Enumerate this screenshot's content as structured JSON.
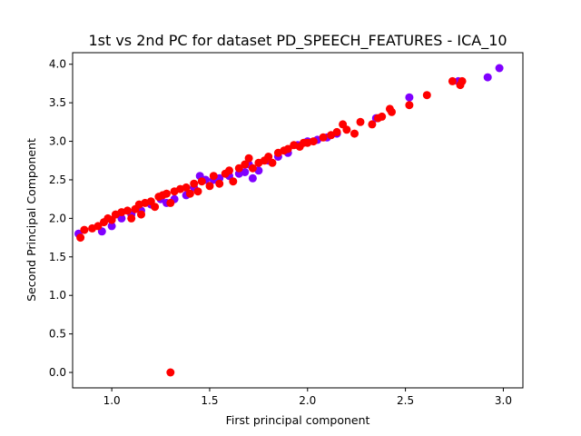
{
  "chart_data": {
    "type": "scatter",
    "title": "1st vs 2nd PC for dataset PD_SPEECH_FEATURES - ICA_10",
    "xlabel": "First principal component",
    "ylabel": "Second Principal Component",
    "xlim": [
      0.8,
      3.1
    ],
    "ylim": [
      -0.2,
      4.15
    ],
    "xticks": [
      "1.0",
      "1.5",
      "2.0",
      "2.5",
      "3.0"
    ],
    "yticks": [
      "0.0",
      "0.5",
      "1.0",
      "1.5",
      "2.0",
      "2.5",
      "3.0",
      "3.5",
      "4.0"
    ],
    "grid": false,
    "colors": {
      "class_0": "#8000ff",
      "class_1": "#ff0000"
    },
    "series": [
      {
        "color_key": "class_0",
        "points": [
          [
            0.83,
            1.8
          ],
          [
            0.95,
            1.83
          ],
          [
            1.0,
            1.9
          ],
          [
            1.05,
            2.0
          ],
          [
            1.1,
            2.05
          ],
          [
            1.15,
            2.1
          ],
          [
            1.2,
            2.18
          ],
          [
            1.25,
            2.25
          ],
          [
            1.28,
            2.2
          ],
          [
            1.32,
            2.25
          ],
          [
            1.38,
            2.3
          ],
          [
            1.42,
            2.4
          ],
          [
            1.45,
            2.55
          ],
          [
            1.48,
            2.5
          ],
          [
            1.52,
            2.5
          ],
          [
            1.55,
            2.52
          ],
          [
            1.6,
            2.55
          ],
          [
            1.65,
            2.58
          ],
          [
            1.68,
            2.6
          ],
          [
            1.7,
            2.7
          ],
          [
            1.72,
            2.52
          ],
          [
            1.75,
            2.62
          ],
          [
            1.8,
            2.75
          ],
          [
            1.85,
            2.8
          ],
          [
            1.9,
            2.85
          ],
          [
            1.95,
            2.95
          ],
          [
            2.0,
            3.0
          ],
          [
            2.05,
            3.02
          ],
          [
            2.1,
            3.05
          ],
          [
            2.15,
            3.1
          ],
          [
            2.35,
            3.3
          ],
          [
            2.52,
            3.57
          ],
          [
            2.77,
            3.78
          ],
          [
            2.92,
            3.83
          ],
          [
            2.98,
            3.95
          ]
        ]
      },
      {
        "color_key": "class_1",
        "points": [
          [
            0.84,
            1.75
          ],
          [
            0.86,
            1.85
          ],
          [
            0.9,
            1.87
          ],
          [
            0.93,
            1.9
          ],
          [
            0.96,
            1.95
          ],
          [
            0.98,
            2.0
          ],
          [
            1.0,
            1.98
          ],
          [
            1.02,
            2.05
          ],
          [
            1.05,
            2.08
          ],
          [
            1.08,
            2.1
          ],
          [
            1.1,
            2.0
          ],
          [
            1.12,
            2.12
          ],
          [
            1.14,
            2.18
          ],
          [
            1.15,
            2.05
          ],
          [
            1.17,
            2.2
          ],
          [
            1.2,
            2.22
          ],
          [
            1.22,
            2.15
          ],
          [
            1.24,
            2.28
          ],
          [
            1.26,
            2.3
          ],
          [
            1.28,
            2.32
          ],
          [
            1.3,
            2.2
          ],
          [
            1.32,
            2.35
          ],
          [
            1.35,
            2.38
          ],
          [
            1.38,
            2.4
          ],
          [
            1.4,
            2.32
          ],
          [
            1.42,
            2.45
          ],
          [
            1.44,
            2.35
          ],
          [
            1.46,
            2.48
          ],
          [
            1.5,
            2.42
          ],
          [
            1.52,
            2.55
          ],
          [
            1.55,
            2.45
          ],
          [
            1.58,
            2.58
          ],
          [
            1.6,
            2.62
          ],
          [
            1.62,
            2.48
          ],
          [
            1.65,
            2.65
          ],
          [
            1.68,
            2.7
          ],
          [
            1.7,
            2.78
          ],
          [
            1.72,
            2.65
          ],
          [
            1.75,
            2.72
          ],
          [
            1.78,
            2.75
          ],
          [
            1.8,
            2.8
          ],
          [
            1.82,
            2.72
          ],
          [
            1.85,
            2.85
          ],
          [
            1.88,
            2.88
          ],
          [
            1.9,
            2.9
          ],
          [
            1.93,
            2.95
          ],
          [
            1.96,
            2.93
          ],
          [
            1.98,
            2.98
          ],
          [
            2.0,
            2.98
          ],
          [
            2.03,
            3.0
          ],
          [
            2.08,
            3.05
          ],
          [
            2.12,
            3.08
          ],
          [
            2.15,
            3.12
          ],
          [
            2.18,
            3.22
          ],
          [
            2.2,
            3.15
          ],
          [
            2.24,
            3.1
          ],
          [
            2.27,
            3.25
          ],
          [
            2.33,
            3.22
          ],
          [
            2.36,
            3.3
          ],
          [
            2.38,
            3.32
          ],
          [
            2.42,
            3.42
          ],
          [
            2.43,
            3.38
          ],
          [
            2.52,
            3.47
          ],
          [
            2.61,
            3.6
          ],
          [
            2.74,
            3.78
          ],
          [
            2.78,
            3.73
          ],
          [
            2.79,
            3.78
          ],
          [
            1.3,
            0.0
          ]
        ]
      }
    ]
  }
}
